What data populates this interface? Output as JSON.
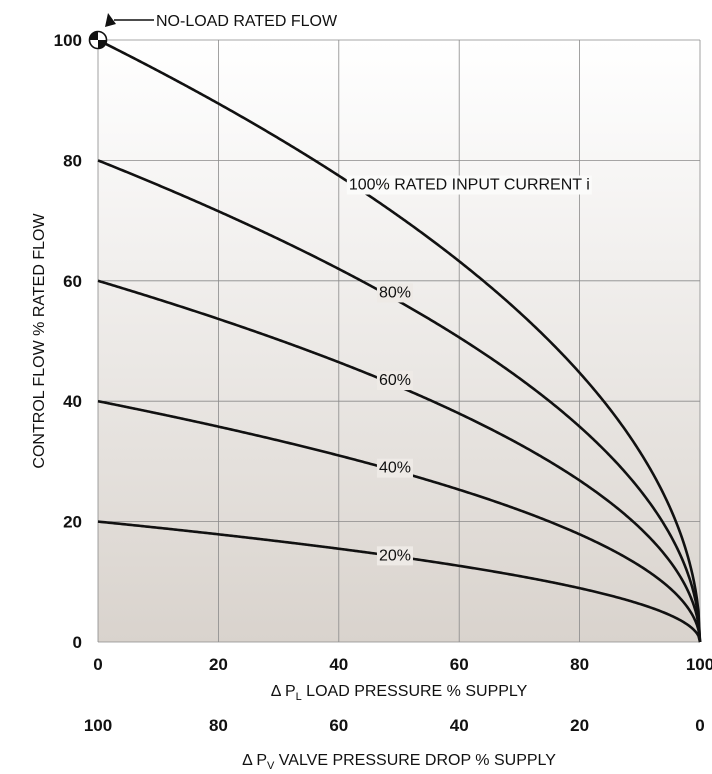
{
  "chart_data": {
    "type": "line",
    "ylabel": "CONTROL FLOW % RATED FLOW",
    "xlabel": {
      "prefix": "Δ P",
      "subscript": "L",
      "text": " LOAD PRESSURE % SUPPLY"
    },
    "x2label": {
      "prefix": "Δ P",
      "subscript": "V",
      "text": " VALVE PRESSURE DROP % SUPPLY"
    },
    "xlim": [
      0,
      100
    ],
    "ylim": [
      0,
      100
    ],
    "x_ticks": [
      "0",
      "20",
      "40",
      "60",
      "80",
      "100"
    ],
    "x2_ticks": [
      "100",
      "80",
      "60",
      "40",
      "20",
      "0"
    ],
    "y_ticks": [
      "0",
      "20",
      "40",
      "60",
      "80",
      "100"
    ],
    "grid": true,
    "annotation": "NO-LOAD RATED FLOW",
    "series": [
      {
        "name": "100% RATED INPUT CURRENT i",
        "label_at": 42,
        "x": [
          0,
          20,
          40,
          60,
          80,
          100
        ],
        "values": [
          100,
          89.4,
          77.5,
          63.2,
          44.7,
          0
        ]
      },
      {
        "name": "80%",
        "label_at": 47,
        "x": [
          0,
          20,
          40,
          60,
          80,
          100
        ],
        "values": [
          80,
          71.6,
          62,
          50.6,
          35.8,
          0
        ]
      },
      {
        "name": "60%",
        "label_at": 47,
        "x": [
          0,
          20,
          40,
          60,
          80,
          100
        ],
        "values": [
          60,
          53.7,
          46.5,
          37.9,
          26.8,
          0
        ]
      },
      {
        "name": "40%",
        "label_at": 47,
        "x": [
          0,
          20,
          40,
          60,
          80,
          100
        ],
        "values": [
          40,
          35.8,
          31,
          25.3,
          17.9,
          0
        ]
      },
      {
        "name": "20%",
        "label_at": 47,
        "x": [
          0,
          20,
          40,
          60,
          80,
          100
        ],
        "values": [
          20,
          17.9,
          15.5,
          12.6,
          8.9,
          0
        ]
      }
    ]
  }
}
